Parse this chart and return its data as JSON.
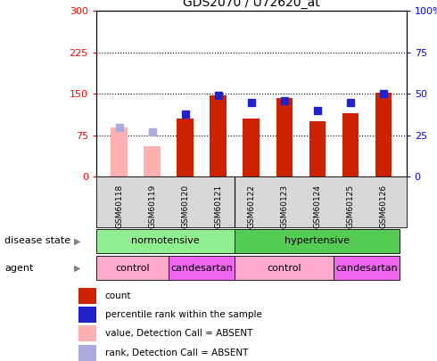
{
  "title": "GDS2070 / U72620_at",
  "samples": [
    "GSM60118",
    "GSM60119",
    "GSM60120",
    "GSM60121",
    "GSM60122",
    "GSM60123",
    "GSM60124",
    "GSM60125",
    "GSM60126"
  ],
  "red_values": [
    90,
    55,
    105,
    147,
    105,
    143,
    100,
    115,
    152
  ],
  "red_absent": [
    true,
    true,
    false,
    false,
    false,
    false,
    false,
    false,
    false
  ],
  "blue_values": [
    30,
    27,
    38,
    49,
    45,
    46,
    40,
    45,
    50
  ],
  "blue_absent": [
    true,
    true,
    false,
    false,
    false,
    false,
    false,
    false,
    false
  ],
  "ylim_left": [
    0,
    300
  ],
  "ylim_right": [
    0,
    100
  ],
  "yticks_left": [
    0,
    75,
    150,
    225,
    300
  ],
  "yticks_right": [
    0,
    25,
    50,
    75,
    100
  ],
  "ytick_labels_right": [
    "0",
    "25",
    "50",
    "75",
    "100%"
  ],
  "disease_state_groups": [
    {
      "label": "normotensive",
      "start": 0,
      "end": 4,
      "color": "#90ee90"
    },
    {
      "label": "hypertensive",
      "start": 4,
      "end": 9,
      "color": "#55cc55"
    }
  ],
  "agent_groups": [
    {
      "label": "control",
      "start": 0,
      "end": 2,
      "color": "#ffaacc"
    },
    {
      "label": "candesartan",
      "start": 2,
      "end": 4,
      "color": "#ee66ee"
    },
    {
      "label": "control",
      "start": 4,
      "end": 7,
      "color": "#ffaacc"
    },
    {
      "label": "candesartan",
      "start": 7,
      "end": 9,
      "color": "#ee66ee"
    }
  ],
  "bar_width": 0.5,
  "red_color": "#cc2200",
  "red_absent_color": "#ffb0b0",
  "blue_color": "#2222cc",
  "blue_absent_color": "#aaaadd",
  "legend_items": [
    {
      "color": "#cc2200",
      "label": "count"
    },
    {
      "color": "#2222cc",
      "label": "percentile rank within the sample"
    },
    {
      "color": "#ffb0b0",
      "label": "value, Detection Call = ABSENT"
    },
    {
      "color": "#aaaadd",
      "label": "rank, Detection Call = ABSENT"
    }
  ]
}
